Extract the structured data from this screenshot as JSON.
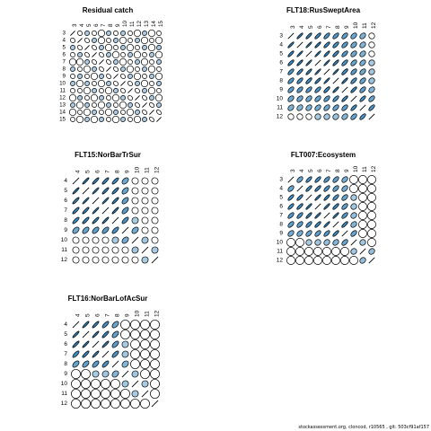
{
  "footer": "stockassessment.org, cloncod, r10565 , git: 503cf91af157",
  "colors": {
    "positive": "#1f77b4",
    "negative": "#ffffff",
    "outline": "#000000"
  },
  "chart_data": [
    {
      "type": "heatmap",
      "title": "Residual catch",
      "ages": [
        3,
        4,
        5,
        6,
        7,
        8,
        9,
        10,
        11,
        12,
        13,
        14,
        15
      ],
      "correlation": [
        [
          1.0,
          -0.1,
          0.05,
          -0.05,
          0.0,
          0.05,
          -0.05,
          0.05,
          -0.05,
          0.0,
          0.05,
          0.0,
          -0.05
        ],
        [
          -0.1,
          1.0,
          -0.25,
          0.05,
          0.0,
          -0.05,
          0.05,
          0.0,
          -0.05,
          0.05,
          0.0,
          -0.05,
          0.0
        ],
        [
          0.05,
          -0.25,
          1.0,
          -0.3,
          0.05,
          0.0,
          -0.05,
          0.05,
          0.0,
          -0.05,
          0.05,
          0.0,
          0.05
        ],
        [
          -0.05,
          0.05,
          -0.3,
          1.0,
          -0.3,
          0.05,
          0.0,
          -0.05,
          0.05,
          0.0,
          -0.05,
          0.05,
          0.0
        ],
        [
          0.0,
          0.0,
          0.05,
          -0.3,
          1.0,
          -0.35,
          0.05,
          0.0,
          -0.05,
          0.05,
          0.0,
          -0.05,
          0.05
        ],
        [
          0.05,
          -0.05,
          0.0,
          0.05,
          -0.35,
          1.0,
          -0.3,
          0.05,
          0.0,
          -0.05,
          0.05,
          0.0,
          -0.05
        ],
        [
          -0.05,
          0.05,
          -0.05,
          0.0,
          0.05,
          -0.3,
          1.0,
          -0.25,
          0.05,
          0.0,
          -0.05,
          0.05,
          0.0
        ],
        [
          0.05,
          0.0,
          0.05,
          -0.05,
          0.0,
          0.05,
          -0.25,
          1.0,
          -0.25,
          0.05,
          0.0,
          -0.05,
          0.05
        ],
        [
          -0.05,
          -0.05,
          0.0,
          0.05,
          -0.05,
          0.0,
          0.05,
          -0.25,
          1.0,
          -0.25,
          0.05,
          0.0,
          -0.05
        ],
        [
          0.0,
          0.05,
          -0.05,
          0.0,
          0.05,
          -0.05,
          0.0,
          0.05,
          -0.25,
          1.0,
          -0.3,
          0.05,
          0.0
        ],
        [
          0.05,
          0.0,
          0.05,
          -0.05,
          0.0,
          0.05,
          -0.05,
          0.0,
          0.05,
          -0.3,
          1.0,
          -0.35,
          0.05
        ],
        [
          0.0,
          -0.05,
          0.0,
          0.05,
          -0.05,
          0.0,
          0.05,
          -0.05,
          0.0,
          0.05,
          -0.35,
          1.0,
          -0.45
        ],
        [
          -0.05,
          0.0,
          0.05,
          0.0,
          0.05,
          -0.05,
          0.0,
          0.05,
          -0.05,
          0.0,
          0.05,
          -0.45,
          1.0
        ]
      ]
    },
    {
      "type": "heatmap",
      "title": "FLT18:RusSweptArea",
      "ages": [
        3,
        4,
        5,
        6,
        7,
        8,
        9,
        10,
        11,
        12
      ],
      "correlation": [
        [
          1.0,
          0.9,
          0.85,
          0.8,
          0.7,
          0.65,
          0.55,
          0.45,
          0.35,
          -0.05
        ],
        [
          0.9,
          1.0,
          0.92,
          0.88,
          0.8,
          0.72,
          0.6,
          0.45,
          0.3,
          -0.05
        ],
        [
          0.85,
          0.92,
          1.0,
          0.93,
          0.87,
          0.78,
          0.65,
          0.45,
          0.35,
          -0.05
        ],
        [
          0.8,
          0.88,
          0.93,
          1.0,
          0.93,
          0.85,
          0.7,
          0.5,
          0.4,
          0.05
        ],
        [
          0.7,
          0.8,
          0.87,
          0.93,
          1.0,
          0.92,
          0.78,
          0.6,
          0.45,
          0.1
        ],
        [
          0.65,
          0.72,
          0.78,
          0.85,
          0.92,
          1.0,
          0.88,
          0.7,
          0.5,
          0.15
        ],
        [
          0.55,
          0.6,
          0.65,
          0.7,
          0.78,
          0.88,
          1.0,
          0.82,
          0.55,
          0.3
        ],
        [
          0.45,
          0.45,
          0.45,
          0.5,
          0.6,
          0.7,
          0.82,
          1.0,
          0.75,
          0.5
        ],
        [
          0.35,
          0.3,
          0.35,
          0.4,
          0.45,
          0.5,
          0.55,
          0.75,
          1.0,
          0.7
        ],
        [
          -0.05,
          -0.05,
          -0.05,
          0.05,
          0.1,
          0.15,
          0.3,
          0.5,
          0.7,
          1.0
        ]
      ]
    },
    {
      "type": "heatmap",
      "title": "FLT15:NorBarTrSur",
      "ages": [
        4,
        5,
        6,
        7,
        8,
        9,
        10,
        11,
        12
      ],
      "correlation": [
        [
          1.0,
          0.92,
          0.88,
          0.85,
          0.8,
          0.45,
          -0.05,
          -0.05,
          -0.05
        ],
        [
          0.92,
          1.0,
          0.93,
          0.88,
          0.85,
          0.5,
          -0.05,
          -0.05,
          -0.05
        ],
        [
          0.88,
          0.93,
          1.0,
          0.93,
          0.88,
          0.55,
          -0.05,
          -0.05,
          -0.05
        ],
        [
          0.85,
          0.88,
          0.93,
          1.0,
          0.92,
          0.6,
          -0.05,
          -0.05,
          -0.05
        ],
        [
          0.8,
          0.85,
          0.88,
          0.92,
          1.0,
          0.7,
          0.05,
          -0.05,
          -0.05
        ],
        [
          0.45,
          0.5,
          0.55,
          0.6,
          0.7,
          1.0,
          0.4,
          -0.05,
          -0.05
        ],
        [
          -0.05,
          -0.05,
          -0.05,
          -0.05,
          0.05,
          0.4,
          1.0,
          0.1,
          -0.05
        ],
        [
          -0.05,
          -0.05,
          -0.05,
          -0.05,
          -0.05,
          -0.05,
          0.1,
          1.0,
          0.05
        ],
        [
          -0.05,
          -0.05,
          -0.05,
          -0.05,
          -0.05,
          -0.05,
          -0.05,
          0.05,
          1.0
        ]
      ]
    },
    {
      "type": "heatmap",
      "title": "FLT007:Ecosystem",
      "ages": [
        3,
        4,
        5,
        6,
        7,
        8,
        9,
        10,
        11,
        12
      ],
      "correlation": [
        [
          1.0,
          0.5,
          0.75,
          0.75,
          0.65,
          0.55,
          0.4,
          0.0,
          0.0,
          0.0
        ],
        [
          0.5,
          1.0,
          0.8,
          0.8,
          0.7,
          0.55,
          0.4,
          0.0,
          0.0,
          0.0
        ],
        [
          0.75,
          0.8,
          1.0,
          0.9,
          0.85,
          0.7,
          0.5,
          0.05,
          0.0,
          0.0
        ],
        [
          0.75,
          0.8,
          0.9,
          1.0,
          0.9,
          0.8,
          0.55,
          0.1,
          0.0,
          0.0
        ],
        [
          0.65,
          0.7,
          0.85,
          0.9,
          1.0,
          0.9,
          0.65,
          0.2,
          0.0,
          0.0
        ],
        [
          0.55,
          0.55,
          0.7,
          0.8,
          0.9,
          1.0,
          0.8,
          0.3,
          0.0,
          0.0
        ],
        [
          0.4,
          0.4,
          0.5,
          0.55,
          0.65,
          0.8,
          1.0,
          0.5,
          0.0,
          0.0
        ],
        [
          0.0,
          0.0,
          0.05,
          0.1,
          0.2,
          0.3,
          0.5,
          1.0,
          0.1,
          0.0
        ],
        [
          0.0,
          0.0,
          0.0,
          0.0,
          0.0,
          0.0,
          0.0,
          0.1,
          1.0,
          0.2
        ],
        [
          0.0,
          0.0,
          0.0,
          0.0,
          0.0,
          0.0,
          0.0,
          0.0,
          0.2,
          1.0
        ]
      ]
    },
    {
      "type": "heatmap",
      "title": "FLT16:NorBarLofAcSur",
      "ages": [
        4,
        5,
        6,
        7,
        8,
        9,
        10,
        11,
        12
      ],
      "correlation": [
        [
          1.0,
          0.9,
          0.88,
          0.75,
          0.5,
          0.0,
          0.0,
          0.0,
          0.0
        ],
        [
          0.9,
          1.0,
          0.92,
          0.85,
          0.55,
          0.0,
          0.0,
          0.0,
          0.0
        ],
        [
          0.88,
          0.92,
          1.0,
          0.9,
          0.6,
          0.05,
          0.0,
          0.0,
          0.0
        ],
        [
          0.75,
          0.85,
          0.9,
          1.0,
          0.7,
          0.1,
          0.0,
          0.0,
          0.0
        ],
        [
          0.5,
          0.55,
          0.6,
          0.7,
          1.0,
          0.3,
          0.0,
          0.0,
          0.0
        ],
        [
          0.0,
          0.0,
          0.05,
          0.1,
          0.3,
          1.0,
          0.1,
          0.0,
          0.0
        ],
        [
          0.0,
          0.0,
          0.0,
          0.0,
          0.0,
          0.1,
          1.0,
          0.05,
          0.0
        ],
        [
          0.0,
          0.0,
          0.0,
          0.0,
          0.0,
          0.0,
          0.05,
          1.0,
          0.0
        ],
        [
          0.0,
          0.0,
          0.0,
          0.0,
          0.0,
          0.0,
          0.0,
          0.0,
          1.0
        ]
      ]
    }
  ]
}
